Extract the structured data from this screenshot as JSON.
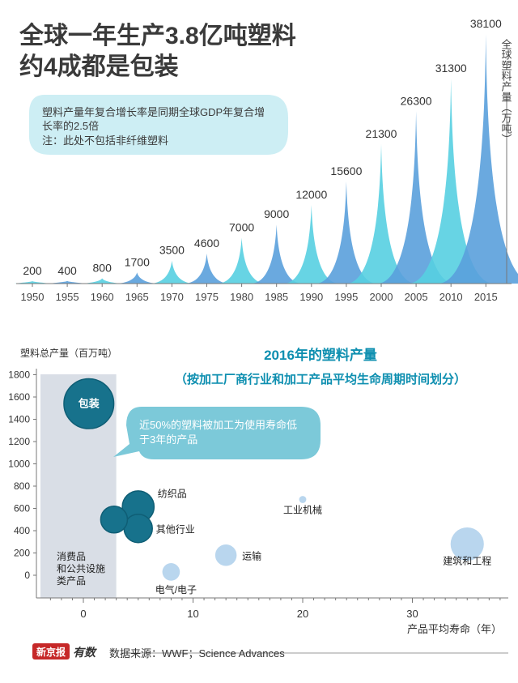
{
  "header": {
    "title_line1": "全球一年生产3.8亿吨塑料",
    "title_line2": "约4成都是包装"
  },
  "note": {
    "line1": "塑料产量年复合增长率是同期全球GDP年复合增",
    "line2": "长率的2.5倍",
    "line3": "注：此处不包括非纤维塑料"
  },
  "colors": {
    "spike_a": "#56cfe1",
    "spike_b": "#5aa0dc",
    "teal": "#17728c",
    "light_blue": "#b9d6ee",
    "bubble_callout": "#7cc9d9",
    "shade": "#d9dee6",
    "title_blue": "#0e8fb0"
  },
  "chart_data": [
    {
      "type": "area",
      "ylabel": "全球塑料产量（万吨）",
      "xlabel": "",
      "x": [
        "1950",
        "1955",
        "1960",
        "1965",
        "1970",
        "1975",
        "1980",
        "1985",
        "1990",
        "1995",
        "2000",
        "2005",
        "2010",
        "2015"
      ],
      "values": [
        200,
        400,
        800,
        1700,
        3500,
        4600,
        7000,
        9000,
        12000,
        15600,
        21300,
        26300,
        31300,
        38100
      ],
      "value_labels": [
        "200",
        "400",
        "800",
        "1700",
        "3500",
        "4600",
        "7000",
        "9000",
        "12000",
        "15600",
        "21300",
        "26300",
        "31300",
        "38100"
      ]
    },
    {
      "type": "scatter",
      "title": "2016年的塑料产量",
      "subtitle": "（按加工厂商行业和加工产品平均生命周期时间划分）",
      "ylabel": "塑料总产量（百万吨）",
      "xlabel": "产品平均寿命（年）",
      "xlim": [
        -4,
        38
      ],
      "ylim": [
        -150,
        1850
      ],
      "yticks": [
        "1800",
        "1600",
        "1400",
        "1200",
        "1000",
        "800",
        "600",
        "400",
        "200",
        "0"
      ],
      "ytick_values": [
        1800,
        1600,
        1400,
        1200,
        1000,
        800,
        600,
        400,
        200,
        0
      ],
      "xticks": [
        "0",
        "10",
        "20",
        "30"
      ],
      "xtick_values": [
        0,
        10,
        20,
        30
      ],
      "shaded_x_range": [
        -4,
        3
      ],
      "points": [
        {
          "name": "包装",
          "x": 0.5,
          "y": 1540,
          "r_value": 146,
          "color": "teal"
        },
        {
          "name": "纺织品",
          "x": 5,
          "y": 615,
          "r_value": 59,
          "color": "teal"
        },
        {
          "name": "其他行业",
          "x": 5,
          "y": 420,
          "r_value": 47,
          "color": "teal"
        },
        {
          "name": "消费品和公共设施类产品",
          "x": 2.8,
          "y": 500,
          "r_value": 42,
          "color": "teal"
        },
        {
          "name": "电气/电子",
          "x": 8,
          "y": 30,
          "r_value": 18,
          "color": "light_blue"
        },
        {
          "name": "运输",
          "x": 13,
          "y": 180,
          "r_value": 27,
          "color": "light_blue"
        },
        {
          "name": "工业机械",
          "x": 20,
          "y": 680,
          "r_value": 3,
          "color": "light_blue"
        },
        {
          "name": "建筑和工程",
          "x": 35,
          "y": 280,
          "r_value": 65,
          "color": "light_blue"
        }
      ],
      "callout": {
        "line1": "近50%的塑料被加工为使用寿命低",
        "line2": "于3年的产品"
      }
    }
  ],
  "footer": {
    "brand": "新京报",
    "brand_sub": "有数",
    "source": "数据来源：WWF；Science Advances"
  }
}
